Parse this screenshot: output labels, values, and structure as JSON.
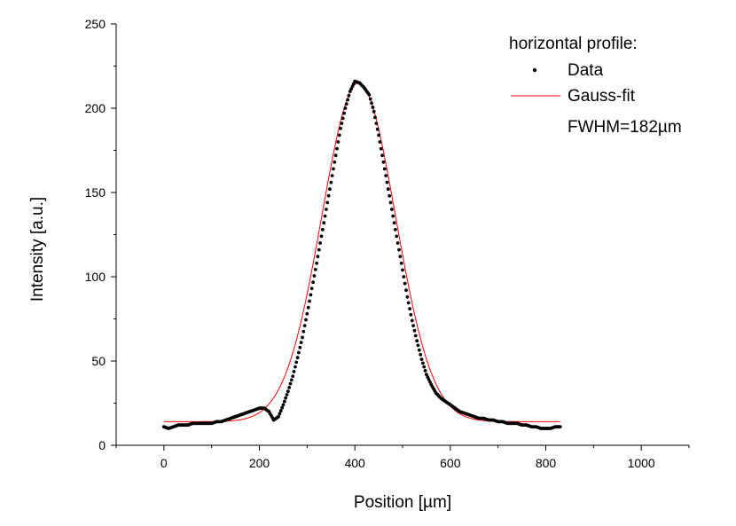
{
  "chart_data": {
    "type": "scatter",
    "xlabel": "Position [µm]",
    "ylabel": "Intensity [a.u.]",
    "xlim": [
      -100,
      1100
    ],
    "ylim": [
      0,
      250
    ],
    "xticks": [
      0,
      200,
      400,
      600,
      800,
      1000
    ],
    "yticks": [
      0,
      50,
      100,
      150,
      200,
      250
    ],
    "grid": false,
    "legend_position": "top-right",
    "legend_title": "horizontal profile:",
    "legend_note": "FWHM=182µm",
    "series": [
      {
        "name": "Data",
        "style": "dots",
        "color": "#000000",
        "x": [
          0,
          10,
          20,
          30,
          40,
          50,
          60,
          70,
          80,
          90,
          100,
          110,
          120,
          130,
          140,
          150,
          160,
          170,
          180,
          190,
          200,
          210,
          220,
          230,
          240,
          250,
          260,
          270,
          280,
          290,
          300,
          310,
          320,
          330,
          340,
          350,
          360,
          370,
          380,
          390,
          400,
          410,
          420,
          430,
          440,
          450,
          460,
          470,
          480,
          490,
          500,
          510,
          520,
          530,
          540,
          550,
          560,
          570,
          580,
          590,
          600,
          610,
          620,
          630,
          640,
          650,
          660,
          670,
          680,
          690,
          700,
          710,
          720,
          730,
          740,
          750,
          760,
          770,
          780,
          790,
          800,
          810,
          820,
          830
        ],
        "y": [
          11,
          10,
          11,
          12,
          12,
          12,
          13,
          13,
          13,
          13,
          13,
          14,
          14,
          15,
          16,
          17,
          18,
          19,
          20,
          21,
          22,
          22,
          20,
          15,
          17,
          24,
          32,
          41,
          52,
          64,
          78,
          93,
          108,
          124,
          140,
          156,
          172,
          188,
          200,
          210,
          216,
          215,
          212,
          208,
          198,
          184,
          168,
          152,
          136,
          120,
          104,
          88,
          74,
          62,
          51,
          42,
          36,
          31,
          28,
          26,
          24,
          22,
          20,
          19,
          18,
          17,
          16,
          16,
          15,
          15,
          14,
          14,
          13,
          13,
          13,
          12,
          12,
          11,
          11,
          10,
          10,
          10,
          11,
          11
        ]
      },
      {
        "name": "Gauss-fit",
        "style": "line",
        "color": "#ff0000",
        "baseline": 14,
        "amplitude": 201,
        "center": 408,
        "fwhm": 182
      }
    ]
  }
}
